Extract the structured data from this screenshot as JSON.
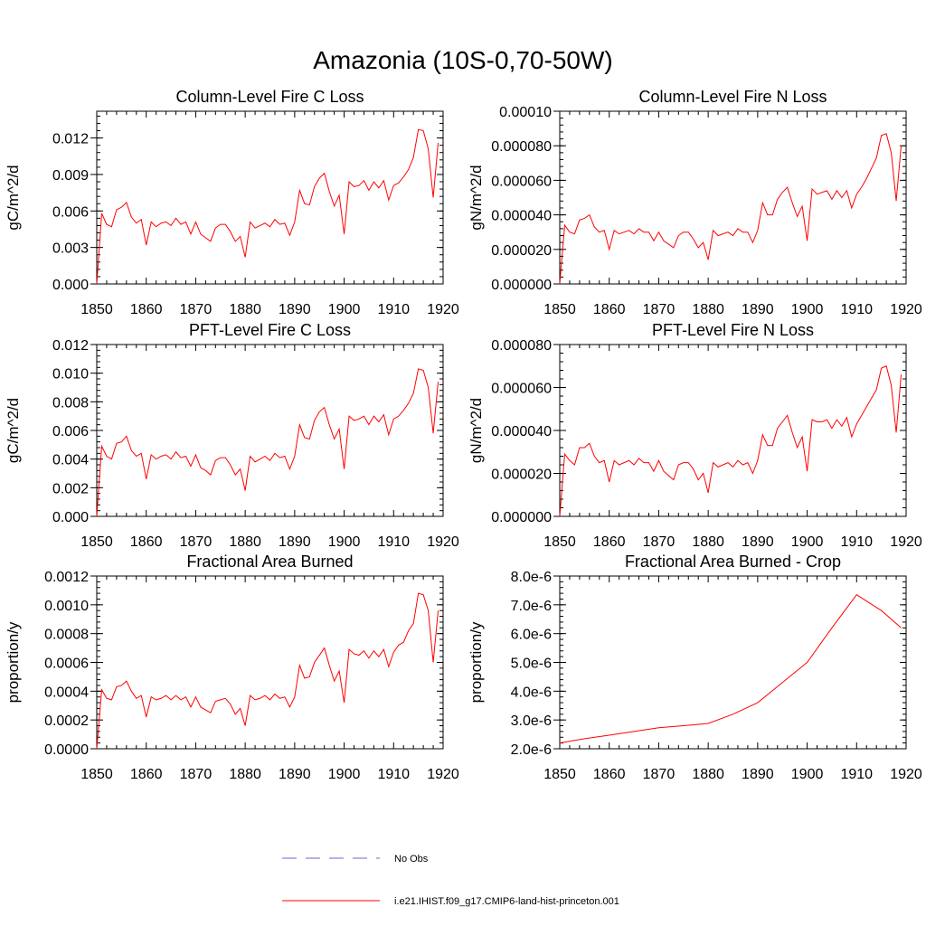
{
  "page": {
    "title": "Amazonia (10S-0,70-50W)"
  },
  "legend": {
    "obs_label": "No Obs",
    "model_label": "i.e21.IHIST.f09_g17.CMIP6-land-hist-princeton.001",
    "obs_color": "#6a6ad8",
    "model_color": "#ff0000"
  },
  "chart_data": [
    {
      "type": "line",
      "title": "Column-Level Fire C Loss",
      "ylabel": "gC/m^2/d",
      "xlim": [
        1850,
        1920
      ],
      "ylim": [
        0,
        0.0142
      ],
      "yticks": [
        0,
        0.003,
        0.006,
        0.009,
        0.012
      ],
      "ytick_labels": [
        "0.000",
        "0.003",
        "0.006",
        "0.009",
        "0.012"
      ],
      "xticks": [
        1850,
        1860,
        1870,
        1880,
        1890,
        1900,
        1910,
        1920
      ],
      "series": [
        {
          "color": "#ff0000",
          "x": [
            1850,
            1851,
            1852,
            1853,
            1854,
            1855,
            1856,
            1857,
            1858,
            1859,
            1860,
            1861,
            1862,
            1863,
            1864,
            1865,
            1866,
            1867,
            1868,
            1869,
            1870,
            1871,
            1872,
            1873,
            1874,
            1875,
            1876,
            1877,
            1878,
            1879,
            1880,
            1881,
            1882,
            1883,
            1884,
            1885,
            1886,
            1887,
            1888,
            1889,
            1890,
            1891,
            1892,
            1893,
            1894,
            1895,
            1896,
            1897,
            1898,
            1899,
            1900,
            1901,
            1902,
            1903,
            1904,
            1905,
            1906,
            1907,
            1908,
            1909,
            1910,
            1911,
            1912,
            1913,
            1914,
            1915,
            1916,
            1917,
            1918,
            1919
          ],
          "y": [
            0.0,
            0.0058,
            0.0049,
            0.0047,
            0.0061,
            0.0063,
            0.0067,
            0.0055,
            0.005,
            0.0053,
            0.0032,
            0.0051,
            0.0047,
            0.005,
            0.0051,
            0.0048,
            0.0054,
            0.0049,
            0.0051,
            0.0041,
            0.0051,
            0.0041,
            0.0038,
            0.0035,
            0.0046,
            0.0049,
            0.0049,
            0.0043,
            0.0035,
            0.0039,
            0.0022,
            0.0051,
            0.0046,
            0.0048,
            0.005,
            0.0047,
            0.0053,
            0.0049,
            0.005,
            0.004,
            0.0051,
            0.0077,
            0.0066,
            0.0065,
            0.008,
            0.0087,
            0.0091,
            0.0076,
            0.0064,
            0.0073,
            0.0041,
            0.0084,
            0.008,
            0.0081,
            0.0085,
            0.0077,
            0.0084,
            0.0079,
            0.0085,
            0.0069,
            0.0081,
            0.0083,
            0.0088,
            0.0094,
            0.0104,
            0.0127,
            0.0126,
            0.0111,
            0.0071,
            0.0116
          ]
        }
      ]
    },
    {
      "type": "line",
      "title": "Column-Level Fire N Loss",
      "ylabel": "gN/m^2/d",
      "xlim": [
        1850,
        1920
      ],
      "ylim": [
        0,
        0.0001
      ],
      "yticks": [
        0,
        2e-05,
        4e-05,
        6e-05,
        8e-05,
        0.0001
      ],
      "ytick_labels": [
        "0.000000",
        "0.000020",
        "0.000040",
        "0.000060",
        "0.000080",
        "0.00010"
      ],
      "xticks": [
        1850,
        1860,
        1870,
        1880,
        1890,
        1900,
        1910,
        1920
      ],
      "series": [
        {
          "color": "#ff0000",
          "x": [
            1850,
            1851,
            1852,
            1853,
            1854,
            1855,
            1856,
            1857,
            1858,
            1859,
            1860,
            1861,
            1862,
            1863,
            1864,
            1865,
            1866,
            1867,
            1868,
            1869,
            1870,
            1871,
            1872,
            1873,
            1874,
            1875,
            1876,
            1877,
            1878,
            1879,
            1880,
            1881,
            1882,
            1883,
            1884,
            1885,
            1886,
            1887,
            1888,
            1889,
            1890,
            1891,
            1892,
            1893,
            1894,
            1895,
            1896,
            1897,
            1898,
            1899,
            1900,
            1901,
            1902,
            1903,
            1904,
            1905,
            1906,
            1907,
            1908,
            1909,
            1910,
            1911,
            1912,
            1913,
            1914,
            1915,
            1916,
            1917,
            1918,
            1919
          ],
          "y": [
            0.0,
            3.4e-05,
            3e-05,
            2.9e-05,
            3.7e-05,
            3.8e-05,
            4e-05,
            3.3e-05,
            3e-05,
            3.1e-05,
            2e-05,
            3.1e-05,
            2.9e-05,
            3e-05,
            3.1e-05,
            2.9e-05,
            3.2e-05,
            3e-05,
            3e-05,
            2.5e-05,
            3e-05,
            2.5e-05,
            2.3e-05,
            2.1e-05,
            2.8e-05,
            3e-05,
            3e-05,
            2.6e-05,
            2.1e-05,
            2.4e-05,
            1.4e-05,
            3.1e-05,
            2.8e-05,
            2.9e-05,
            3e-05,
            2.8e-05,
            3.2e-05,
            3e-05,
            3e-05,
            2.4e-05,
            3.1e-05,
            4.7e-05,
            4e-05,
            4e-05,
            4.9e-05,
            5.3e-05,
            5.6e-05,
            4.7e-05,
            3.9e-05,
            4.5e-05,
            2.5e-05,
            5.5e-05,
            5.2e-05,
            5.3e-05,
            5.4e-05,
            4.9e-05,
            5.4e-05,
            5e-05,
            5.4e-05,
            4.4e-05,
            5.2e-05,
            5.6e-05,
            6.1e-05,
            6.7e-05,
            7.3e-05,
            8.6e-05,
            8.7e-05,
            7.6e-05,
            4.8e-05,
            8e-05
          ]
        }
      ]
    },
    {
      "type": "line",
      "title": "PFT-Level Fire C Loss",
      "ylabel": "gC/m^2/d",
      "xlim": [
        1850,
        1920
      ],
      "ylim": [
        0,
        0.012
      ],
      "yticks": [
        0,
        0.002,
        0.004,
        0.006,
        0.008,
        0.01,
        0.012
      ],
      "ytick_labels": [
        "0.000",
        "0.002",
        "0.004",
        "0.006",
        "0.008",
        "0.010",
        "0.012"
      ],
      "xticks": [
        1850,
        1860,
        1870,
        1880,
        1890,
        1900,
        1910,
        1920
      ],
      "series": [
        {
          "color": "#ff0000",
          "x": [
            1850,
            1851,
            1852,
            1853,
            1854,
            1855,
            1856,
            1857,
            1858,
            1859,
            1860,
            1861,
            1862,
            1863,
            1864,
            1865,
            1866,
            1867,
            1868,
            1869,
            1870,
            1871,
            1872,
            1873,
            1874,
            1875,
            1876,
            1877,
            1878,
            1879,
            1880,
            1881,
            1882,
            1883,
            1884,
            1885,
            1886,
            1887,
            1888,
            1889,
            1890,
            1891,
            1892,
            1893,
            1894,
            1895,
            1896,
            1897,
            1898,
            1899,
            1900,
            1901,
            1902,
            1903,
            1904,
            1905,
            1906,
            1907,
            1908,
            1909,
            1910,
            1911,
            1912,
            1913,
            1914,
            1915,
            1916,
            1917,
            1918,
            1919
          ],
          "y": [
            0.0,
            0.0049,
            0.0042,
            0.004,
            0.0051,
            0.0052,
            0.0056,
            0.0046,
            0.0042,
            0.0044,
            0.0026,
            0.0043,
            0.004,
            0.0042,
            0.0043,
            0.004,
            0.0045,
            0.0041,
            0.0042,
            0.0035,
            0.0043,
            0.0034,
            0.0032,
            0.0029,
            0.0039,
            0.0041,
            0.0041,
            0.0036,
            0.0029,
            0.0033,
            0.0018,
            0.0042,
            0.0038,
            0.004,
            0.0042,
            0.0039,
            0.0044,
            0.0041,
            0.0042,
            0.0033,
            0.0042,
            0.0064,
            0.0055,
            0.0054,
            0.0067,
            0.0073,
            0.0076,
            0.0064,
            0.0054,
            0.0061,
            0.0033,
            0.007,
            0.0067,
            0.0068,
            0.007,
            0.0064,
            0.007,
            0.0066,
            0.0071,
            0.0057,
            0.0068,
            0.007,
            0.0074,
            0.0079,
            0.0086,
            0.0103,
            0.0102,
            0.009,
            0.0058,
            0.0094
          ]
        }
      ]
    },
    {
      "type": "line",
      "title": "PFT-Level Fire N Loss",
      "ylabel": "gN/m^2/d",
      "xlim": [
        1850,
        1920
      ],
      "ylim": [
        0,
        8e-05
      ],
      "yticks": [
        0,
        2e-05,
        4e-05,
        6e-05,
        8e-05
      ],
      "ytick_labels": [
        "0.000000",
        "0.000020",
        "0.000040",
        "0.000060",
        "0.000080"
      ],
      "xticks": [
        1850,
        1860,
        1870,
        1880,
        1890,
        1900,
        1910,
        1920
      ],
      "series": [
        {
          "color": "#ff0000",
          "x": [
            1850,
            1851,
            1852,
            1853,
            1854,
            1855,
            1856,
            1857,
            1858,
            1859,
            1860,
            1861,
            1862,
            1863,
            1864,
            1865,
            1866,
            1867,
            1868,
            1869,
            1870,
            1871,
            1872,
            1873,
            1874,
            1875,
            1876,
            1877,
            1878,
            1879,
            1880,
            1881,
            1882,
            1883,
            1884,
            1885,
            1886,
            1887,
            1888,
            1889,
            1890,
            1891,
            1892,
            1893,
            1894,
            1895,
            1896,
            1897,
            1898,
            1899,
            1900,
            1901,
            1902,
            1903,
            1904,
            1905,
            1906,
            1907,
            1908,
            1909,
            1910,
            1911,
            1912,
            1913,
            1914,
            1915,
            1916,
            1917,
            1918,
            1919
          ],
          "y": [
            0.0,
            2.9e-05,
            2.6e-05,
            2.4e-05,
            3.2e-05,
            3.2e-05,
            3.4e-05,
            2.8e-05,
            2.5e-05,
            2.6e-05,
            1.6e-05,
            2.6e-05,
            2.4e-05,
            2.5e-05,
            2.6e-05,
            2.4e-05,
            2.7e-05,
            2.5e-05,
            2.5e-05,
            2.1e-05,
            2.6e-05,
            2.1e-05,
            1.9e-05,
            1.7e-05,
            2.4e-05,
            2.5e-05,
            2.5e-05,
            2.2e-05,
            1.7e-05,
            2e-05,
            1.1e-05,
            2.5e-05,
            2.3e-05,
            2.4e-05,
            2.5e-05,
            2.3e-05,
            2.6e-05,
            2.4e-05,
            2.5e-05,
            2e-05,
            2.6e-05,
            3.8e-05,
            3.3e-05,
            3.3e-05,
            4.1e-05,
            4.4e-05,
            4.7e-05,
            3.9e-05,
            3.2e-05,
            3.7e-05,
            2.1e-05,
            4.5e-05,
            4.4e-05,
            4.4e-05,
            4.5e-05,
            4.1e-05,
            4.5e-05,
            4.2e-05,
            4.6e-05,
            3.7e-05,
            4.3e-05,
            4.7e-05,
            5.1e-05,
            5.5e-05,
            5.9e-05,
            6.9e-05,
            7e-05,
            6.1e-05,
            3.9e-05,
            6.6e-05
          ]
        }
      ]
    },
    {
      "type": "line",
      "title": "Fractional Area Burned",
      "ylabel": "proportion/y",
      "xlim": [
        1850,
        1920
      ],
      "ylim": [
        0,
        0.0012
      ],
      "yticks": [
        0,
        0.0002,
        0.0004,
        0.0006,
        0.0008,
        0.001,
        0.0012
      ],
      "ytick_labels": [
        "0.0000",
        "0.0002",
        "0.0004",
        "0.0006",
        "0.0008",
        "0.0010",
        "0.0012"
      ],
      "xticks": [
        1850,
        1860,
        1870,
        1880,
        1890,
        1900,
        1910,
        1920
      ],
      "series": [
        {
          "color": "#ff0000",
          "x": [
            1850,
            1851,
            1852,
            1853,
            1854,
            1855,
            1856,
            1857,
            1858,
            1859,
            1860,
            1861,
            1862,
            1863,
            1864,
            1865,
            1866,
            1867,
            1868,
            1869,
            1870,
            1871,
            1872,
            1873,
            1874,
            1875,
            1876,
            1877,
            1878,
            1879,
            1880,
            1881,
            1882,
            1883,
            1884,
            1885,
            1886,
            1887,
            1888,
            1889,
            1890,
            1891,
            1892,
            1893,
            1894,
            1895,
            1896,
            1897,
            1898,
            1899,
            1900,
            1901,
            1902,
            1903,
            1904,
            1905,
            1906,
            1907,
            1908,
            1909,
            1910,
            1911,
            1912,
            1913,
            1914,
            1915,
            1916,
            1917,
            1918,
            1919
          ],
          "y": [
            0.0,
            0.00041,
            0.00035,
            0.00034,
            0.00043,
            0.00044,
            0.00047,
            0.0004,
            0.00035,
            0.00037,
            0.00022,
            0.00036,
            0.00034,
            0.00035,
            0.00037,
            0.00034,
            0.00037,
            0.00034,
            0.00036,
            0.00029,
            0.00036,
            0.00029,
            0.00027,
            0.00025,
            0.00033,
            0.00034,
            0.00035,
            0.00031,
            0.00024,
            0.00028,
            0.00016,
            0.00037,
            0.00034,
            0.00035,
            0.00037,
            0.00034,
            0.00038,
            0.00035,
            0.00036,
            0.00029,
            0.00036,
            0.00058,
            0.00049,
            0.0005,
            0.0006,
            0.00065,
            0.0007,
            0.00058,
            0.00047,
            0.00054,
            0.00032,
            0.00069,
            0.00066,
            0.00065,
            0.00068,
            0.00063,
            0.00068,
            0.00064,
            0.00069,
            0.00057,
            0.00067,
            0.00072,
            0.00074,
            0.00082,
            0.00087,
            0.00108,
            0.00107,
            0.00096,
            0.0006,
            0.00096
          ]
        }
      ]
    },
    {
      "type": "line",
      "title": "Fractional Area Burned - Crop",
      "ylabel": "proportion/y",
      "xlim": [
        1850,
        1920
      ],
      "ylim": [
        2e-06,
        8e-06
      ],
      "yticks": [
        2e-06,
        3e-06,
        4e-06,
        5e-06,
        6e-06,
        7e-06,
        8e-06
      ],
      "ytick_labels": [
        "2.0e-6",
        "3.0e-6",
        "4.0e-6",
        "5.0e-6",
        "6.0e-6",
        "7.0e-6",
        "8.0e-6"
      ],
      "xticks": [
        1850,
        1860,
        1870,
        1880,
        1890,
        1900,
        1910,
        1920
      ],
      "series": [
        {
          "color": "#ff0000",
          "x": [
            1850,
            1855,
            1860,
            1865,
            1870,
            1875,
            1880,
            1885,
            1890,
            1895,
            1900,
            1905,
            1910,
            1915,
            1919
          ],
          "y": [
            2.2e-06,
            2.35e-06,
            2.47e-06,
            2.6e-06,
            2.73e-06,
            2.8e-06,
            2.88e-06,
            3.2e-06,
            3.6e-06,
            4.3e-06,
            5e-06,
            6.2e-06,
            7.35e-06,
            6.8e-06,
            6.2e-06
          ]
        }
      ]
    }
  ]
}
